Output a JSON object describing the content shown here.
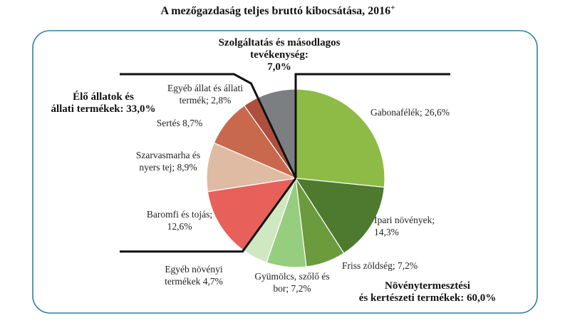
{
  "chart_data": {
    "type": "pie",
    "title": "A mezőgazdaság teljes bruttó kibocsátása, 2016",
    "title_superscript": "+",
    "slices": [
      {
        "name": "Gabonafélék",
        "value": 26.6,
        "color": "#8dbb45",
        "label_lines": [
          "Gabonafélék; 26,6%"
        ]
      },
      {
        "name": "Ipari növények",
        "value": 14.3,
        "color": "#4d7a2f",
        "label_lines": [
          "Ipari növények;",
          "14,3%"
        ]
      },
      {
        "name": "Friss zöldség",
        "value": 7.2,
        "color": "#6b9b3d",
        "label_lines": [
          "Friss zöldség; 7,2%"
        ]
      },
      {
        "name": "Gyümölcs, szőlő és bor",
        "value": 7.2,
        "color": "#96cd7e",
        "label_lines": [
          "Gyümölcs, szőlő és",
          "bor; 7,2%"
        ]
      },
      {
        "name": "Egyéb növényi termékek",
        "value": 4.7,
        "color": "#cfe8c2",
        "label_lines": [
          "Egyéb növényi",
          "termékek 4,7%"
        ]
      },
      {
        "name": "Baromfi és tojás",
        "value": 12.6,
        "color": "#e8605a",
        "label_lines": [
          "Baromfi és tojás;",
          "12,6%"
        ]
      },
      {
        "name": "Szarvasmarha és nyers tej",
        "value": 8.9,
        "color": "#dfbba3",
        "label_lines": [
          "Szarvasmarha és",
          "nyers tej; 8,9%"
        ]
      },
      {
        "name": "Sertés",
        "value": 8.7,
        "color": "#c8694d",
        "label_lines": [
          "Sertés 8,7%"
        ]
      },
      {
        "name": "Egyéb állat és állati termék",
        "value": 2.8,
        "color": "#ad4f3c",
        "label_lines": [
          "Egyéb állat és állati",
          "termék; 2,8%"
        ]
      },
      {
        "name": "Szolgáltatás és másodlagos tevékenység",
        "value": 7.0,
        "color": "#7b7f82",
        "label_lines": []
      }
    ],
    "group_labels": {
      "services": [
        "Szolgáltatás és másodlagos",
        "tevékenység:",
        "7,0%"
      ],
      "livestock": [
        "Élő állatok és",
        "állati termékek: 33,0%"
      ],
      "crops": [
        "Növénytermesztési",
        "és kertészeti termékek:  60,0%"
      ]
    },
    "frame_color": "#2f7ea1"
  }
}
